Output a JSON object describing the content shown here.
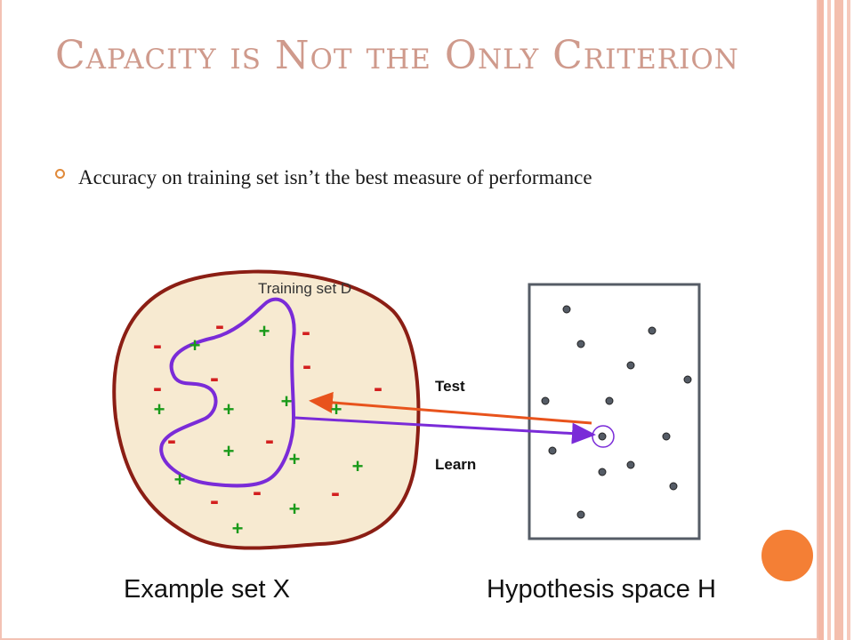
{
  "slide": {
    "title": "Capacity is Not the Only Criterion",
    "bullet": "Accuracy on training set isn’t the best measure of performance"
  },
  "diagram": {
    "training_label": "Training set D",
    "test_label": "Test",
    "learn_label": "Learn",
    "example_set_label": "Example set X",
    "hypothesis_label": "Hypothesis space H",
    "plus_symbol": "+",
    "minus_symbol": "-"
  },
  "colors": {
    "title": "#cf9a8c",
    "blob_fill": "#f7ead1",
    "blob_stroke": "#8b1e14",
    "region_stroke": "#7a2bd8",
    "plus": "#1a9a1a",
    "minus": "#d31f1f",
    "test_arrow": "#e8531c",
    "learn_arrow": "#7a2bd8",
    "hypothesis_dot": "#555c66",
    "accent_circle": "#f47f35"
  }
}
